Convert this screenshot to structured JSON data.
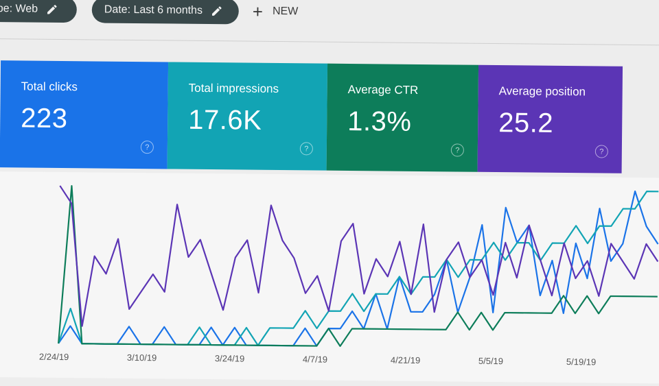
{
  "toolbar": {
    "type_filter": "ype: Web",
    "date_filter": "Date: Last 6 months",
    "new_label": "NEW",
    "new_icon": "plus-icon",
    "edit_icon": "pencil-icon"
  },
  "metrics": [
    {
      "label": "Total clicks",
      "value": "223",
      "color": "#1a73e8"
    },
    {
      "label": "Total impressions",
      "value": "17.6K",
      "color": "#12a4b4"
    },
    {
      "label": "Average CTR",
      "value": "1.3%",
      "color": "#0d7d5a"
    },
    {
      "label": "Average position",
      "value": "25.2",
      "color": "#5b35b5"
    }
  ],
  "help_glyph": "?",
  "chart_data": {
    "type": "line",
    "x_tick_labels": [
      "2/24/19",
      "3/10/19",
      "3/24/19",
      "4/7/19",
      "4/21/19",
      "5/5/19",
      "5/19/19"
    ],
    "grid": false,
    "series": [
      {
        "color": "#1a73e8",
        "values": [
          0,
          1,
          0,
          0,
          0,
          0,
          1,
          0,
          0,
          1,
          0,
          0,
          0,
          1,
          0,
          1,
          0,
          0,
          0,
          0,
          0,
          1,
          0,
          1,
          1,
          2,
          1,
          3,
          1,
          4,
          2,
          2,
          3,
          5,
          2,
          4,
          7,
          2,
          8,
          6,
          7,
          3,
          5,
          2,
          6,
          4,
          8,
          5,
          6,
          9,
          7,
          6
        ]
      },
      {
        "color": "#12a4b4",
        "values": [
          0,
          2,
          0,
          0,
          0,
          0,
          0,
          0,
          0,
          0,
          0,
          0,
          1,
          0,
          0,
          0,
          1,
          0,
          1,
          1,
          1,
          2,
          1,
          2,
          2,
          3,
          2,
          3,
          3,
          4,
          3,
          4,
          4,
          5,
          4,
          5,
          5,
          6,
          5,
          6,
          6,
          5,
          6,
          6,
          7,
          6,
          7,
          7,
          8,
          8,
          9,
          9
        ]
      },
      {
        "color": "#0d7d5a",
        "values": [
          0,
          9,
          0,
          0,
          0,
          0,
          0,
          0,
          0,
          0,
          0,
          0,
          0,
          0,
          0,
          0,
          0,
          0,
          0,
          0,
          0,
          0,
          0,
          1,
          0,
          1,
          1,
          1,
          1,
          1,
          1,
          1,
          1,
          1,
          2,
          1,
          2,
          1,
          2,
          2,
          2,
          2,
          2,
          3,
          2,
          3,
          2,
          3,
          3,
          3,
          3,
          3
        ]
      },
      {
        "color": "#5b35b5",
        "values": [
          9,
          8,
          1,
          5,
          4,
          6,
          2,
          3,
          4,
          3,
          8,
          5,
          6,
          4,
          2,
          5,
          6,
          3,
          8,
          6,
          5,
          3,
          4,
          2,
          6,
          7,
          3,
          5,
          4,
          6,
          3,
          7,
          2,
          5,
          6,
          4,
          5,
          3,
          6,
          4,
          7,
          5,
          3,
          6,
          4,
          5,
          3,
          6,
          5,
          4,
          6,
          5
        ]
      }
    ]
  }
}
